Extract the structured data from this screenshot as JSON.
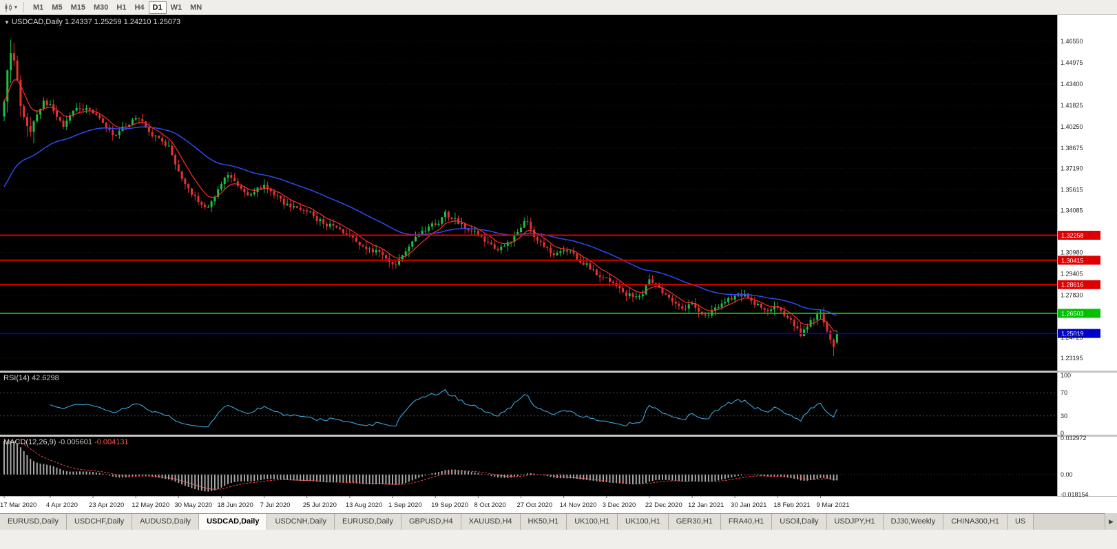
{
  "toolbar": {
    "caret": "▾",
    "timeframes": [
      "M1",
      "M5",
      "M15",
      "M30",
      "H1",
      "H4",
      "D1",
      "W1",
      "MN"
    ],
    "active_timeframe": "D1"
  },
  "chart_header": {
    "collapse": "▼",
    "title": "USDCAD,Daily",
    "ohlc": "1.24337 1.25259 1.24210 1.25073"
  },
  "chart_data": {
    "type": "candlestick",
    "symbol": "USDCAD",
    "timeframe": "Daily",
    "last_candle": {
      "open": 1.24337,
      "high": 1.25259,
      "low": 1.2421,
      "close": 1.25073
    },
    "y_ticks": [
      "1.46550",
      "1.44975",
      "1.43400",
      "1.41825",
      "1.40250",
      "1.38675",
      "1.37190",
      "1.35615",
      "1.34085",
      "1.30980",
      "1.29405",
      "1.27830",
      "1.24725",
      "1.23195"
    ],
    "x_labels": [
      "17 Mar 2020",
      "4 Apr 2020",
      "23 Apr 2020",
      "12 May 2020",
      "30 May 2020",
      "18 Jun 2020",
      "7 Jul 2020",
      "25 Jul 2020",
      "13 Aug 2020",
      "1 Sep 2020",
      "19 Sep 2020",
      "8 Oct 2020",
      "27 Oct 2020",
      "14 Nov 2020",
      "3 Dec 2020",
      "22 Dec 2020",
      "12 Jan 2021",
      "30 Jan 2021",
      "18 Feb 2021",
      "9 Mar 2021"
    ],
    "x_label_indices": [
      0,
      14,
      27,
      40,
      53,
      66,
      79,
      92,
      105,
      118,
      131,
      144,
      157,
      170,
      183,
      196,
      209,
      222,
      235,
      248
    ],
    "levels": [
      {
        "price": 1.32258,
        "label": "1.32258",
        "color": "#dd0000"
      },
      {
        "price": 1.30415,
        "label": "1.30415",
        "color": "#dd0000"
      },
      {
        "price": 1.28616,
        "label": "1.28616",
        "color": "#dd0000"
      },
      {
        "price": 1.26503,
        "label": "1.26503",
        "color": "#00c000"
      },
      {
        "price": 1.25019,
        "label": "1.25019",
        "color": "#0000cc"
      }
    ],
    "moving_averages": [
      {
        "name": "fast-ma",
        "period": 8,
        "color": "#ff2d2d"
      },
      {
        "name": "slow-ma",
        "period": 40,
        "color": "#2e4bef",
        "init": 1.355
      }
    ],
    "candles": {
      "count": 254,
      "first_open": 1.41,
      "noise": 0.0035,
      "up_color": "#1fbf45",
      "down_color": "#e23232",
      "waypoints": [
        [
          0,
          1.421
        ],
        [
          1,
          1.4455
        ],
        [
          2,
          1.456
        ],
        [
          3,
          1.4485
        ],
        [
          4,
          1.433
        ],
        [
          6,
          1.409
        ],
        [
          8,
          1.3985
        ],
        [
          10,
          1.411
        ],
        [
          12,
          1.4215
        ],
        [
          14,
          1.4175
        ],
        [
          16,
          1.4085
        ],
        [
          18,
          1.4035
        ],
        [
          20,
          1.4115
        ],
        [
          23,
          1.4165
        ],
        [
          27,
          1.4125
        ],
        [
          30,
          1.406
        ],
        [
          33,
          1.3965
        ],
        [
          36,
          1.401
        ],
        [
          40,
          1.4095
        ],
        [
          43,
          1.4025
        ],
        [
          46,
          1.3945
        ],
        [
          50,
          1.3875
        ],
        [
          53,
          1.3705
        ],
        [
          56,
          1.3565
        ],
        [
          59,
          1.3485
        ],
        [
          62,
          1.3425
        ],
        [
          64,
          1.3505
        ],
        [
          66,
          1.3615
        ],
        [
          68,
          1.3675
        ],
        [
          71,
          1.3585
        ],
        [
          74,
          1.3535
        ],
        [
          77,
          1.3565
        ],
        [
          79,
          1.3595
        ],
        [
          82,
          1.3535
        ],
        [
          85,
          1.3465
        ],
        [
          88,
          1.3425
        ],
        [
          92,
          1.3405
        ],
        [
          95,
          1.3345
        ],
        [
          98,
          1.3305
        ],
        [
          101,
          1.327
        ],
        [
          105,
          1.3235
        ],
        [
          108,
          1.3165
        ],
        [
          111,
          1.3125
        ],
        [
          114,
          1.309
        ],
        [
          117,
          1.3035
        ],
        [
          119,
          1.3015
        ],
        [
          121,
          1.3075
        ],
        [
          123,
          1.3155
        ],
        [
          126,
          1.3235
        ],
        [
          129,
          1.3285
        ],
        [
          132,
          1.3325
        ],
        [
          134,
          1.3385
        ],
        [
          136,
          1.3355
        ],
        [
          138,
          1.3325
        ],
        [
          141,
          1.327
        ],
        [
          144,
          1.324
        ],
        [
          147,
          1.3165
        ],
        [
          150,
          1.313
        ],
        [
          153,
          1.316
        ],
        [
          155,
          1.3225
        ],
        [
          157,
          1.3295
        ],
        [
          159,
          1.3335
        ],
        [
          161,
          1.3225
        ],
        [
          164,
          1.3145
        ],
        [
          167,
          1.309
        ],
        [
          170,
          1.3125
        ],
        [
          173,
          1.3075
        ],
        [
          176,
          1.302
        ],
        [
          179,
          1.2965
        ],
        [
          181,
          1.2905
        ],
        [
          183,
          1.2915
        ],
        [
          186,
          1.2855
        ],
        [
          189,
          1.2795
        ],
        [
          192,
          1.2765
        ],
        [
          194,
          1.2805
        ],
        [
          196,
          1.2885
        ],
        [
          198,
          1.2855
        ],
        [
          200,
          1.2805
        ],
        [
          203,
          1.2745
        ],
        [
          206,
          1.2695
        ],
        [
          209,
          1.2715
        ],
        [
          211,
          1.2675
        ],
        [
          213,
          1.2635
        ],
        [
          215,
          1.2665
        ],
        [
          218,
          1.2735
        ],
        [
          222,
          1.2775
        ],
        [
          225,
          1.2795
        ],
        [
          228,
          1.2725
        ],
        [
          231,
          1.2665
        ],
        [
          234,
          1.2695
        ],
        [
          237,
          1.2645
        ],
        [
          240,
          1.2565
        ],
        [
          242,
          1.2495
        ],
        [
          244,
          1.2555
        ],
        [
          246,
          1.2615
        ],
        [
          248,
          1.2655
        ],
        [
          249,
          1.2595
        ],
        [
          250,
          1.2525
        ],
        [
          251,
          1.2455
        ],
        [
          252,
          1.2395
        ],
        [
          253,
          1.2507
        ]
      ],
      "overrides": {
        "2": {
          "high": 1.4668
        },
        "252": {
          "low": 1.2335
        },
        "253": {
          "open": 1.24337,
          "high": 1.25259,
          "low": 1.2421,
          "close": 1.25073
        }
      }
    },
    "indicators": {
      "rsi": {
        "name": "RSI(14)",
        "value": "42.6298",
        "period": 14,
        "levels": [
          70,
          30
        ],
        "axis": [
          [
            "100",
            100
          ],
          [
            "70",
            70
          ],
          [
            "30",
            30
          ],
          [
            "0",
            0
          ]
        ],
        "color": "#3da6e0"
      },
      "macd": {
        "name": "MACD(12,26,9)",
        "value_main": "-0.005601",
        "value_signal": "-0.004131",
        "max": 0.032972,
        "min": -0.018154,
        "axis": [
          [
            "0.032972",
            0.032972
          ],
          [
            "0.00",
            0
          ],
          [
            "-0.018154",
            -0.018154
          ]
        ],
        "histogram_color": "#a8a8a8",
        "signal_color": "#ff4242"
      }
    }
  },
  "tabs": {
    "scroll_icon": "▶",
    "active_index": 3,
    "items": [
      "EURUSD,Daily",
      "USDCHF,Daily",
      "AUDUSD,Daily",
      "USDCAD,Daily",
      "USDCNH,Daily",
      "EURUSD,Daily",
      "GBPUSD,H4",
      "XAUUSD,H4",
      "HK50,H1",
      "UK100,H1",
      "UK100,H1",
      "GER30,H1",
      "FRA40,H1",
      "USOil,Daily",
      "USDJPY,H1",
      "DJ30,Weekly",
      "CHINA300,H1",
      "US"
    ]
  }
}
